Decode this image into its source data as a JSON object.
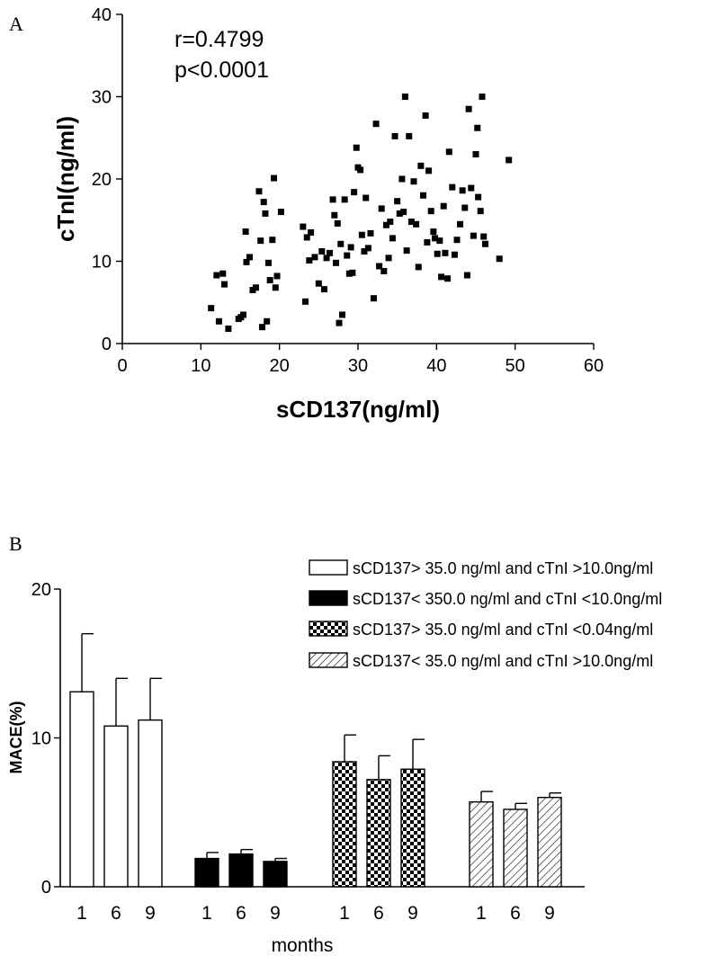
{
  "panel_a": {
    "letter": "A",
    "stats": [
      "r=0.4799",
      "p<0.0001"
    ]
  },
  "panel_b": {
    "letter": "B"
  },
  "chart_data": [
    {
      "type": "scatter",
      "title": "",
      "xlabel": "sCD137(ng/ml)",
      "ylabel": "cTnI(ng/ml)",
      "xlim": [
        0,
        60
      ],
      "ylim": [
        0,
        40
      ],
      "xticks": [
        0,
        10,
        20,
        30,
        40,
        50,
        60
      ],
      "yticks": [
        0,
        10,
        20,
        30,
        40
      ],
      "annotations": [
        "r=0.4799",
        "p<0.0001"
      ],
      "points": [
        [
          11.3,
          4.3
        ],
        [
          12.0,
          8.3
        ],
        [
          12.3,
          2.7
        ],
        [
          12.8,
          8.5
        ],
        [
          13.0,
          7.2
        ],
        [
          13.5,
          1.8
        ],
        [
          14.8,
          3.0
        ],
        [
          15.1,
          3.2
        ],
        [
          15.4,
          3.5
        ],
        [
          15.7,
          13.6
        ],
        [
          15.8,
          9.9
        ],
        [
          16.2,
          10.5
        ],
        [
          16.6,
          6.5
        ],
        [
          17.0,
          6.8
        ],
        [
          17.4,
          18.5
        ],
        [
          17.6,
          12.5
        ],
        [
          17.8,
          2.0
        ],
        [
          18.0,
          17.2
        ],
        [
          18.2,
          15.8
        ],
        [
          18.4,
          2.7
        ],
        [
          18.6,
          9.8
        ],
        [
          18.8,
          7.7
        ],
        [
          19.1,
          12.6
        ],
        [
          19.3,
          20.1
        ],
        [
          19.5,
          6.8
        ],
        [
          19.7,
          8.2
        ],
        [
          20.2,
          16.0
        ],
        [
          23.0,
          14.2
        ],
        [
          23.3,
          5.1
        ],
        [
          23.5,
          12.9
        ],
        [
          23.8,
          10.1
        ],
        [
          24.0,
          13.5
        ],
        [
          24.5,
          10.5
        ],
        [
          25.0,
          7.3
        ],
        [
          25.4,
          11.2
        ],
        [
          25.7,
          6.6
        ],
        [
          26.0,
          10.4
        ],
        [
          26.4,
          11.0
        ],
        [
          26.8,
          17.5
        ],
        [
          27.0,
          15.6
        ],
        [
          27.2,
          9.8
        ],
        [
          27.4,
          14.6
        ],
        [
          27.6,
          2.5
        ],
        [
          27.8,
          12.1
        ],
        [
          28.0,
          3.5
        ],
        [
          28.3,
          17.5
        ],
        [
          28.6,
          10.7
        ],
        [
          28.9,
          8.5
        ],
        [
          29.1,
          11.7
        ],
        [
          29.3,
          8.6
        ],
        [
          29.5,
          18.4
        ],
        [
          29.8,
          23.8
        ],
        [
          30.0,
          21.4
        ],
        [
          30.3,
          21.1
        ],
        [
          30.5,
          13.2
        ],
        [
          30.8,
          11.2
        ],
        [
          31.0,
          17.7
        ],
        [
          31.3,
          11.6
        ],
        [
          31.6,
          13.4
        ],
        [
          32.0,
          5.5
        ],
        [
          32.3,
          26.7
        ],
        [
          32.7,
          9.4
        ],
        [
          33.0,
          16.4
        ],
        [
          33.3,
          8.8
        ],
        [
          33.6,
          14.4
        ],
        [
          33.9,
          10.4
        ],
        [
          34.1,
          14.8
        ],
        [
          34.4,
          12.8
        ],
        [
          34.7,
          25.2
        ],
        [
          35.0,
          17.3
        ],
        [
          35.3,
          15.8
        ],
        [
          35.6,
          20.0
        ],
        [
          35.8,
          16.0
        ],
        [
          36.0,
          30.0
        ],
        [
          36.2,
          11.3
        ],
        [
          36.5,
          25.2
        ],
        [
          36.8,
          14.8
        ],
        [
          37.1,
          19.7
        ],
        [
          37.4,
          14.5
        ],
        [
          37.7,
          9.3
        ],
        [
          38.0,
          21.6
        ],
        [
          38.3,
          18.0
        ],
        [
          38.6,
          27.7
        ],
        [
          38.8,
          12.3
        ],
        [
          39.0,
          21.0
        ],
        [
          39.3,
          16.1
        ],
        [
          39.6,
          13.6
        ],
        [
          39.8,
          12.8
        ],
        [
          40.1,
          10.9
        ],
        [
          40.4,
          12.5
        ],
        [
          40.6,
          8.1
        ],
        [
          40.9,
          16.7
        ],
        [
          41.1,
          11.0
        ],
        [
          41.4,
          7.9
        ],
        [
          41.6,
          23.3
        ],
        [
          42.0,
          19.0
        ],
        [
          42.3,
          10.8
        ],
        [
          42.6,
          12.6
        ],
        [
          43.0,
          14.5
        ],
        [
          43.3,
          18.6
        ],
        [
          43.6,
          16.5
        ],
        [
          43.9,
          8.3
        ],
        [
          44.1,
          28.5
        ],
        [
          44.4,
          18.9
        ],
        [
          44.7,
          13.1
        ],
        [
          45.0,
          23.0
        ],
        [
          45.2,
          26.2
        ],
        [
          45.3,
          17.8
        ],
        [
          45.6,
          16.1
        ],
        [
          45.8,
          30.0
        ],
        [
          46.0,
          13.0
        ],
        [
          46.2,
          12.1
        ],
        [
          48.0,
          10.3
        ],
        [
          49.2,
          22.3
        ]
      ]
    },
    {
      "type": "bar",
      "title": "",
      "xlabel": "months",
      "ylabel": "MACE(%)",
      "ylim": [
        0,
        20
      ],
      "yticks": [
        0,
        10,
        20
      ],
      "categories": [
        "1",
        "6",
        "9"
      ],
      "series": [
        {
          "name": "sCD137> 35.0 ng/ml and cTnI >10.0ng/ml",
          "values": [
            13.1,
            10.8,
            11.2
          ],
          "errors": [
            3.9,
            3.2,
            2.8
          ],
          "fill": "white"
        },
        {
          "name": "sCD137< 350.0 ng/ml and cTnI <10.0ng/ml",
          "values": [
            1.9,
            2.2,
            1.7
          ],
          "errors": [
            0.4,
            0.3,
            0.2
          ],
          "fill": "black"
        },
        {
          "name": "sCD137> 35.0 ng/ml and cTnI <0.04ng/ml",
          "values": [
            8.4,
            7.2,
            7.9
          ],
          "errors": [
            1.8,
            1.6,
            2.0
          ],
          "fill": "checker"
        },
        {
          "name": "sCD137< 35.0 ng/ml and cTnI >10.0ng/ml",
          "values": [
            5.7,
            5.2,
            6.0
          ],
          "errors": [
            0.7,
            0.4,
            0.3
          ],
          "fill": "hatch"
        }
      ]
    }
  ]
}
